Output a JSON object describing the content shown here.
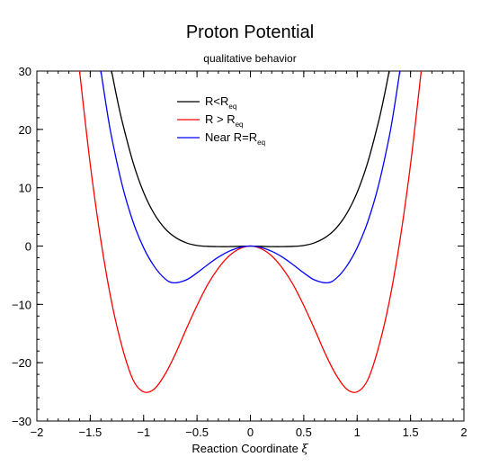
{
  "chart_data": {
    "type": "line",
    "title": "Proton Potential",
    "subtitle": "qualitative behavior",
    "xlabel": "Reaction Coordinate",
    "xlabel_symbol": "ξ",
    "ylabel": "",
    "xlim": [
      -2,
      2
    ],
    "ylim": [
      -30,
      30
    ],
    "x_ticks": [
      -2,
      -1.5,
      -1,
      -0.5,
      0,
      0.5,
      1,
      1.5,
      2
    ],
    "x_tick_labels": [
      "−2",
      "−1.5",
      "−1",
      "−0.5",
      "0",
      "0.5",
      "1",
      "1.5",
      "2"
    ],
    "y_ticks": [
      30,
      20,
      10,
      0,
      -10,
      -20,
      -30
    ],
    "y_tick_labels": [
      "30",
      "20",
      "10",
      "0",
      "−10",
      "−20",
      "−30"
    ],
    "grid": false,
    "legend_position": "top-center",
    "series": [
      {
        "name": "R<Req",
        "legend_main": "R<R",
        "legend_sub": "eq",
        "color": "#000000",
        "x": [
          -1.3,
          -1.25,
          -1.2,
          -1.1,
          -1.0,
          -0.9,
          -0.8,
          -0.7,
          -0.6,
          -0.5,
          -0.4,
          -0.3,
          -0.2,
          -0.1,
          0,
          0.1,
          0.2,
          0.3,
          0.4,
          0.5,
          0.6,
          0.7,
          0.8,
          0.9,
          1.0,
          1.1,
          1.2,
          1.25,
          1.3
        ],
        "y": [
          30,
          25.4,
          21.3,
          14.4,
          9.2,
          5.5,
          3.0,
          1.45,
          0.55,
          0.1,
          -0.05,
          -0.1,
          -0.1,
          -0.05,
          0,
          -0.05,
          -0.1,
          -0.1,
          -0.05,
          0.1,
          0.55,
          1.45,
          3.0,
          5.5,
          9.2,
          14.4,
          21.3,
          25.4,
          30
        ]
      },
      {
        "name": "R > Req",
        "legend_main": "R > R",
        "legend_sub": "eq",
        "color": "#ff0000",
        "x": [
          -1.6,
          -1.5,
          -1.4,
          -1.3,
          -1.2,
          -1.1,
          -1.0,
          -0.9,
          -0.8,
          -0.7,
          -0.6,
          -0.5,
          -0.4,
          -0.3,
          -0.2,
          -0.1,
          0,
          0.1,
          0.2,
          0.3,
          0.4,
          0.5,
          0.6,
          0.7,
          0.8,
          0.9,
          1.0,
          1.1,
          1.2,
          1.3,
          1.4,
          1.5,
          1.6
        ],
        "y": [
          30,
          14.0,
          0.9,
          -9.6,
          -17.4,
          -22.9,
          -25.0,
          -24.5,
          -22.0,
          -18.4,
          -14.2,
          -10.2,
          -6.6,
          -3.8,
          -1.7,
          -0.45,
          0,
          -0.45,
          -1.7,
          -3.8,
          -6.6,
          -10.2,
          -14.2,
          -18.4,
          -22.0,
          -24.5,
          -25.0,
          -22.9,
          -17.4,
          -9.6,
          0.9,
          14.0,
          30
        ]
      },
      {
        "name": "Near R=Req",
        "legend_main": "Near R=R",
        "legend_sub": "eq",
        "color": "#0000ff",
        "x": [
          -1.4,
          -1.35,
          -1.3,
          -1.2,
          -1.1,
          -1.0,
          -0.9,
          -0.8,
          -0.72,
          -0.6,
          -0.5,
          -0.4,
          -0.3,
          -0.2,
          -0.1,
          0,
          0.1,
          0.2,
          0.3,
          0.4,
          0.5,
          0.6,
          0.72,
          0.8,
          0.9,
          1.0,
          1.1,
          1.2,
          1.3,
          1.35,
          1.4
        ],
        "y": [
          30,
          24.0,
          18.7,
          10.4,
          4.2,
          -0.3,
          -3.5,
          -5.6,
          -6.3,
          -5.8,
          -4.6,
          -3.2,
          -1.9,
          -0.9,
          -0.25,
          0,
          -0.25,
          -0.9,
          -1.9,
          -3.2,
          -4.6,
          -5.8,
          -6.3,
          -5.6,
          -3.5,
          -0.3,
          4.2,
          10.4,
          18.7,
          24.0,
          30
        ]
      }
    ]
  }
}
